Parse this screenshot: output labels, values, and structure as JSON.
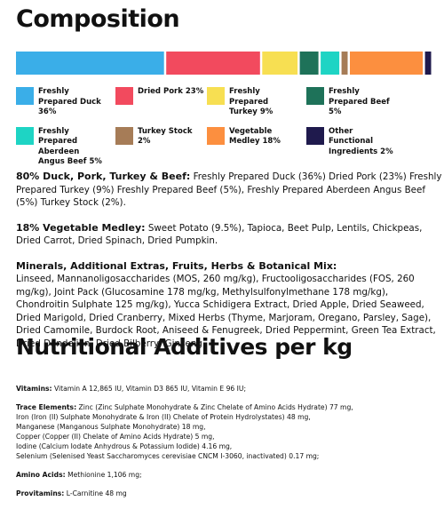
{
  "header": {
    "title": "Composition"
  },
  "chart_data": {
    "type": "stacked_bar",
    "categories": [
      "Freshly Prepared Duck",
      "Dried Pork",
      "Freshly Prepared Turkey",
      "Freshly Prepared Beef",
      "Freshly Prepared Aberdeen Angus Beef",
      "Turkey Stock",
      "Vegetable Medley",
      "Other Functional Ingredients"
    ],
    "values": [
      36,
      23,
      9,
      5,
      5,
      2,
      18,
      2
    ],
    "value_labels": [
      "36%",
      "23%",
      "9%",
      "5%",
      "5%",
      "2%",
      "18%",
      "2%"
    ],
    "colors": [
      "#3aaee8",
      "#f24a5e",
      "#f7df52",
      "#1e7259",
      "#1ed4c4",
      "#a67c57",
      "#fc8f3f",
      "#1f1a4d"
    ]
  },
  "details": [
    {
      "label": "80% Duck, Pork, Turkey & Beef:",
      "text": "Freshly Prepared Duck (36%) Dried Pork (23%) Freshly Prepared Turkey (9%) Freshly Prepared Beef (5%), Freshly Prepared Aberdeen Angus Beef (5%) Turkey Stock (2%)."
    },
    {
      "label": "18% Vegetable Medley:",
      "text": "Sweet Potato (9.5%), Tapioca, Beet Pulp, Lentils, Chickpeas, Dried Carrot, Dried Spinach, Dried Pumpkin."
    },
    {
      "label": "Minerals, Additional Extras, Fruits, Herbs & Botanical Mix:",
      "text": "Linseed, Mannanoligosaccharides (MOS, 260 mg/kg), Fructooligosaccharides (FOS, 260 mg/kg), Joint Pack (Glucosamine 178 mg/kg, Methylsulfonylmethane 178 mg/kg), Chondroitin Sulphate 125 mg/kg), Yucca Schidigera Extract, Dried Apple, Dried Seaweed, Dried Marigold, Dried Cranberry, Mixed Herbs (Thyme, Marjoram, Oregano, Parsley, Sage), Dried Camomile, Burdock Root, Aniseed & Fenugreek, Dried Peppermint, Green Tea Extract, Dried Dandelion, Dried Bilberry, Ginseng"
    }
  ],
  "nutrition": {
    "title": "Nutritional Additives per kg",
    "items": [
      {
        "label": "Vitamins:",
        "lines": [
          "Vitamin A 12,865 IU, Vitamin D3 865 IU, Vitamin E 96 IU;"
        ]
      },
      {
        "label": "Trace Elements:",
        "lines": [
          "Zinc (Zinc Sulphate Monohydrate & Zinc Chelate of Amino Acids Hydrate) 77 mg,",
          "Iron (Iron (II) Sulphate Monohydrate & Iron (II) Chelate of Protein Hydrolystates) 48 mg,",
          "Manganese (Manganous Sulphate Monohydrate) 18 mg,",
          "Copper (Copper (II) Chelate of Amino Acids Hydrate) 5 mg,",
          "Iodine (Calcium Iodate Anhydrous & Potassium Iodide) 4.16 mg,",
          "Selenium (Selenised Yeast Saccharomyces cerevisiae CNCM I-3060, inactivated) 0.17 mg;"
        ]
      },
      {
        "label": "Amino Acids:",
        "lines": [
          "Methionine 1,106 mg;"
        ]
      },
      {
        "label": "Provitamins:",
        "lines": [
          "L-Carnitine  48 mg"
        ]
      }
    ]
  }
}
